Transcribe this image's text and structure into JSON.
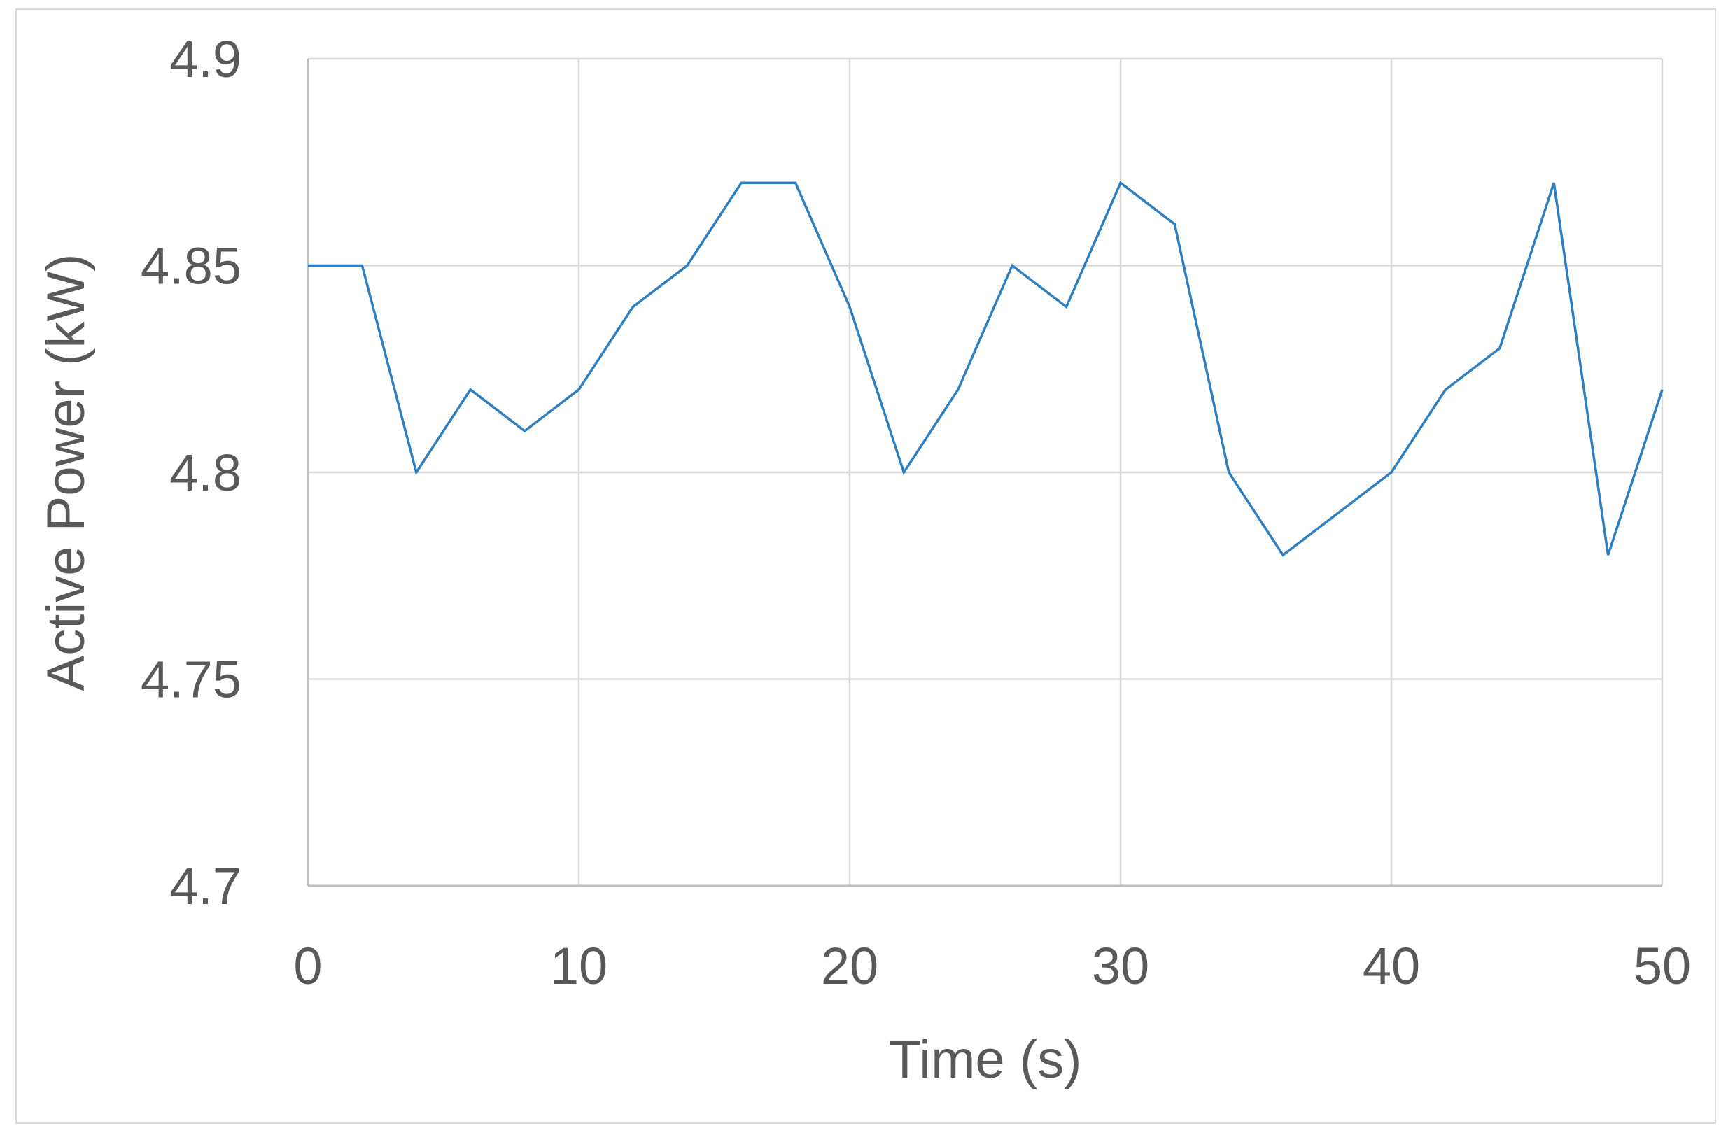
{
  "chart_data": {
    "type": "line",
    "xlabel": "Time (s)",
    "ylabel": "Active Power (kW)",
    "xlim": [
      0,
      50
    ],
    "ylim": [
      4.7,
      4.9
    ],
    "x_ticks": [
      "0",
      "10",
      "20",
      "30",
      "40",
      "50"
    ],
    "y_ticks": [
      "4.7",
      "4.75",
      "4.8",
      "4.85",
      "4.9"
    ],
    "grid": true,
    "legend": "none",
    "series": [
      {
        "color": "#2e7fc1",
        "x": [
          0,
          2,
          4,
          6,
          8,
          10,
          12,
          14,
          16,
          18,
          20,
          22,
          24,
          26,
          28,
          30,
          32,
          34,
          36,
          38,
          40,
          42,
          44,
          46,
          48,
          50
        ],
        "y": [
          4.85,
          4.85,
          4.8,
          4.82,
          4.81,
          4.82,
          4.84,
          4.85,
          4.87,
          4.87,
          4.84,
          4.8,
          4.82,
          4.85,
          4.84,
          4.87,
          4.86,
          4.8,
          4.78,
          4.79,
          4.8,
          4.82,
          4.83,
          4.87,
          4.78,
          4.82
        ]
      }
    ]
  }
}
